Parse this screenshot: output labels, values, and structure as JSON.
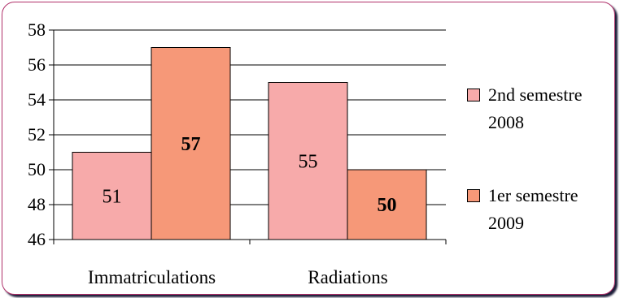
{
  "chart_data": {
    "type": "bar",
    "categories": [
      "Immatriculations",
      "Radiations"
    ],
    "series": [
      {
        "name": "2nd semestre 2008",
        "values": [
          51,
          55
        ],
        "color": "#f7aaaa"
      },
      {
        "name": "1er semestre 2009",
        "values": [
          57,
          50
        ],
        "color": "#f69878"
      }
    ],
    "bold_labels": [
      [
        false,
        false
      ],
      [
        true,
        true
      ]
    ],
    "ylim": [
      46,
      58
    ],
    "yticks": [
      46,
      48,
      50,
      52,
      54,
      56,
      58
    ],
    "grid": true,
    "legend_position": "right",
    "title": "",
    "xlabel": "",
    "ylabel": ""
  }
}
